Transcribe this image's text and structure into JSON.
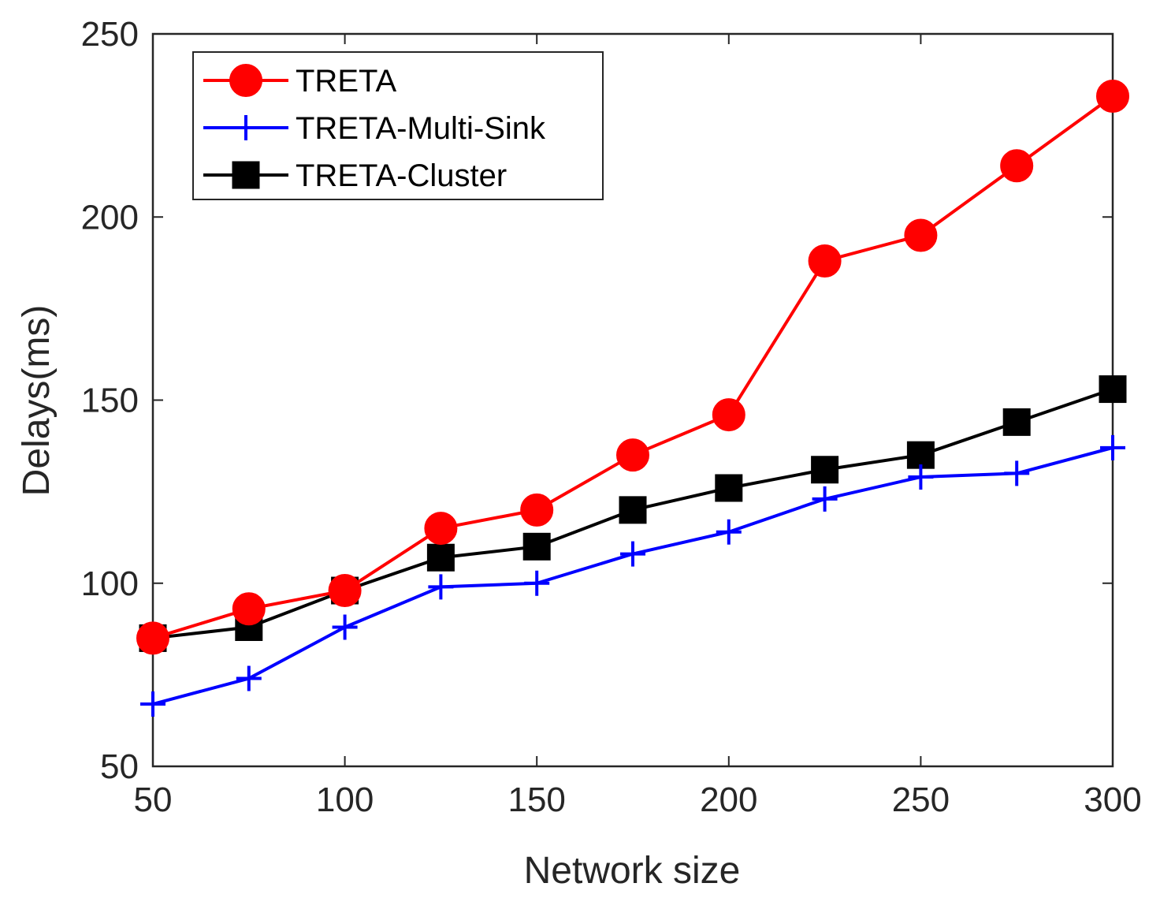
{
  "chart_data": {
    "type": "line",
    "xlabel": "Network size",
    "ylabel": "Delays(ms)",
    "xlim": [
      50,
      300
    ],
    "ylim": [
      50,
      250
    ],
    "xticks": [
      "50",
      "100",
      "150",
      "200",
      "250",
      "300"
    ],
    "yticks": [
      "50",
      "100",
      "150",
      "200",
      "250"
    ],
    "grid": false,
    "legend_position": "top-left",
    "x": [
      50,
      75,
      100,
      125,
      150,
      175,
      200,
      225,
      250,
      275,
      300
    ],
    "series": [
      {
        "name": "TRETA",
        "color": "#ff0000",
        "marker": "circle",
        "values": [
          85,
          93,
          98,
          115,
          120,
          135,
          146,
          188,
          195,
          214,
          233
        ]
      },
      {
        "name": "TRETA-Multi-Sink",
        "color": "#0000ff",
        "marker": "plus",
        "values": [
          67,
          74,
          88,
          99,
          100,
          108,
          114,
          123,
          129,
          130,
          137
        ]
      },
      {
        "name": "TRETA-Cluster",
        "color": "#000000",
        "marker": "square",
        "values": [
          85,
          88,
          98,
          107,
          110,
          120,
          126,
          131,
          135,
          144,
          153
        ]
      }
    ]
  }
}
